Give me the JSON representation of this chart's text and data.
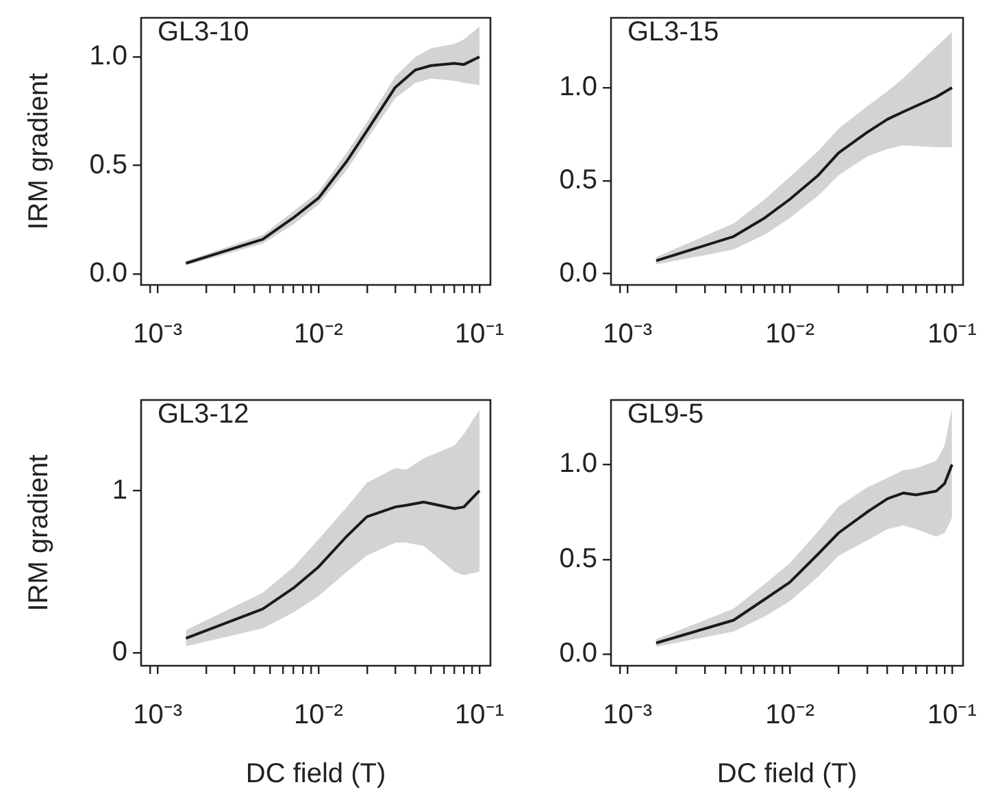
{
  "chart_data": [
    {
      "type": "line",
      "title": "GL3-10",
      "ylabel": "IRM gradient",
      "log": "x",
      "grid": false,
      "legend": false,
      "marker": "none",
      "line_style": "solid",
      "x": [
        0.0015,
        0.0045,
        0.007,
        0.01,
        0.015,
        0.02,
        0.03,
        0.04,
        0.05,
        0.07,
        0.08,
        0.1
      ],
      "series": [
        {
          "color": "#1a1a1a",
          "values": [
            0.05,
            0.16,
            0.26,
            0.35,
            0.52,
            0.66,
            0.86,
            0.94,
            0.96,
            0.97,
            0.965,
            1.0
          ],
          "lower": [
            0.04,
            0.14,
            0.23,
            0.32,
            0.48,
            0.62,
            0.81,
            0.88,
            0.9,
            0.89,
            0.88,
            0.87
          ],
          "upper": [
            0.06,
            0.18,
            0.29,
            0.38,
            0.56,
            0.7,
            0.91,
            1.0,
            1.04,
            1.06,
            1.08,
            1.14
          ]
        }
      ],
      "xlim": [
        0.00079,
        0.117
      ],
      "ylim": [
        -0.05,
        1.18
      ],
      "xticks": [
        {
          "value": 0.0009,
          "label": null
        },
        {
          "value": 0.001,
          "label": "10⁻³"
        },
        {
          "value": 0.002,
          "label": null
        },
        {
          "value": 0.003,
          "label": null
        },
        {
          "value": 0.004,
          "label": null
        },
        {
          "value": 0.005,
          "label": null
        },
        {
          "value": 0.006,
          "label": null
        },
        {
          "value": 0.007,
          "label": null
        },
        {
          "value": 0.008,
          "label": null
        },
        {
          "value": 0.009,
          "label": null
        },
        {
          "value": 0.01,
          "label": "10⁻²"
        },
        {
          "value": 0.02,
          "label": null
        },
        {
          "value": 0.03,
          "label": null
        },
        {
          "value": 0.04,
          "label": null
        },
        {
          "value": 0.05,
          "label": null
        },
        {
          "value": 0.06,
          "label": null
        },
        {
          "value": 0.07,
          "label": null
        },
        {
          "value": 0.08,
          "label": null
        },
        {
          "value": 0.09,
          "label": null
        },
        {
          "value": 0.1,
          "label": "10⁻¹"
        }
      ],
      "yticks": [
        {
          "value": 0,
          "label": "0.0"
        },
        {
          "value": 0.5,
          "label": "0.5"
        },
        {
          "value": 1,
          "label": "1.0"
        }
      ]
    },
    {
      "type": "line",
      "title": "GL3-15",
      "log": "x",
      "grid": false,
      "legend": false,
      "marker": "none",
      "line_style": "solid",
      "x": [
        0.0015,
        0.0045,
        0.007,
        0.01,
        0.015,
        0.02,
        0.03,
        0.04,
        0.05,
        0.08,
        0.1
      ],
      "series": [
        {
          "color": "#1a1a1a",
          "values": [
            0.07,
            0.2,
            0.3,
            0.4,
            0.53,
            0.65,
            0.76,
            0.83,
            0.87,
            0.95,
            1.0
          ],
          "lower": [
            0.05,
            0.13,
            0.21,
            0.3,
            0.42,
            0.53,
            0.63,
            0.67,
            0.69,
            0.68,
            0.68
          ],
          "upper": [
            0.09,
            0.27,
            0.4,
            0.52,
            0.66,
            0.78,
            0.9,
            0.98,
            1.05,
            1.22,
            1.3
          ]
        }
      ],
      "xlim": [
        0.00079,
        0.117
      ],
      "ylim": [
        -0.06,
        1.375
      ],
      "xticks": [
        {
          "value": 0.0009,
          "label": null
        },
        {
          "value": 0.001,
          "label": "10⁻³"
        },
        {
          "value": 0.002,
          "label": null
        },
        {
          "value": 0.003,
          "label": null
        },
        {
          "value": 0.004,
          "label": null
        },
        {
          "value": 0.005,
          "label": null
        },
        {
          "value": 0.006,
          "label": null
        },
        {
          "value": 0.007,
          "label": null
        },
        {
          "value": 0.008,
          "label": null
        },
        {
          "value": 0.009,
          "label": null
        },
        {
          "value": 0.01,
          "label": "10⁻²"
        },
        {
          "value": 0.02,
          "label": null
        },
        {
          "value": 0.03,
          "label": null
        },
        {
          "value": 0.04,
          "label": null
        },
        {
          "value": 0.05,
          "label": null
        },
        {
          "value": 0.06,
          "label": null
        },
        {
          "value": 0.07,
          "label": null
        },
        {
          "value": 0.08,
          "label": null
        },
        {
          "value": 0.09,
          "label": null
        },
        {
          "value": 0.1,
          "label": "10⁻¹"
        }
      ],
      "yticks": [
        {
          "value": 0,
          "label": "0.0"
        },
        {
          "value": 0.5,
          "label": "0.5"
        },
        {
          "value": 1,
          "label": "1.0"
        }
      ]
    },
    {
      "type": "line",
      "title": "GL3-12",
      "xlabel": "DC field (T)",
      "ylabel": "IRM gradient",
      "log": "x",
      "grid": false,
      "legend": false,
      "marker": "none",
      "line_style": "solid",
      "x": [
        0.0015,
        0.0045,
        0.007,
        0.01,
        0.015,
        0.02,
        0.03,
        0.035,
        0.045,
        0.07,
        0.08,
        0.1
      ],
      "series": [
        {
          "color": "#1a1a1a",
          "values": [
            0.09,
            0.27,
            0.4,
            0.53,
            0.72,
            0.84,
            0.9,
            0.91,
            0.93,
            0.89,
            0.9,
            1.0
          ],
          "lower": [
            0.04,
            0.15,
            0.25,
            0.35,
            0.5,
            0.6,
            0.68,
            0.68,
            0.66,
            0.5,
            0.48,
            0.5
          ],
          "upper": [
            0.14,
            0.37,
            0.53,
            0.7,
            0.9,
            1.05,
            1.14,
            1.13,
            1.2,
            1.28,
            1.35,
            1.5
          ]
        }
      ],
      "xlim": [
        0.00079,
        0.117
      ],
      "ylim": [
        -0.08,
        1.56
      ],
      "xticks": [
        {
          "value": 0.0009,
          "label": null
        },
        {
          "value": 0.001,
          "label": "10⁻³"
        },
        {
          "value": 0.002,
          "label": null
        },
        {
          "value": 0.003,
          "label": null
        },
        {
          "value": 0.004,
          "label": null
        },
        {
          "value": 0.005,
          "label": null
        },
        {
          "value": 0.006,
          "label": null
        },
        {
          "value": 0.007,
          "label": null
        },
        {
          "value": 0.008,
          "label": null
        },
        {
          "value": 0.009,
          "label": null
        },
        {
          "value": 0.01,
          "label": "10⁻²"
        },
        {
          "value": 0.02,
          "label": null
        },
        {
          "value": 0.03,
          "label": null
        },
        {
          "value": 0.04,
          "label": null
        },
        {
          "value": 0.05,
          "label": null
        },
        {
          "value": 0.06,
          "label": null
        },
        {
          "value": 0.07,
          "label": null
        },
        {
          "value": 0.08,
          "label": null
        },
        {
          "value": 0.09,
          "label": null
        },
        {
          "value": 0.1,
          "label": "10⁻¹"
        }
      ],
      "yticks": [
        {
          "value": 0,
          "label": "0"
        },
        {
          "value": 1,
          "label": "1"
        }
      ]
    },
    {
      "type": "line",
      "title": "GL9-5",
      "xlabel": "DC field (T)",
      "log": "x",
      "grid": false,
      "legend": false,
      "marker": "none",
      "line_style": "solid",
      "x": [
        0.0015,
        0.0045,
        0.007,
        0.01,
        0.015,
        0.02,
        0.03,
        0.04,
        0.05,
        0.06,
        0.08,
        0.09,
        0.1
      ],
      "series": [
        {
          "color": "#1a1a1a",
          "values": [
            0.06,
            0.18,
            0.29,
            0.38,
            0.53,
            0.64,
            0.75,
            0.82,
            0.85,
            0.84,
            0.86,
            0.9,
            1.0
          ],
          "lower": [
            0.04,
            0.12,
            0.2,
            0.28,
            0.41,
            0.52,
            0.6,
            0.66,
            0.68,
            0.66,
            0.62,
            0.64,
            0.72
          ],
          "upper": [
            0.08,
            0.24,
            0.37,
            0.48,
            0.65,
            0.78,
            0.88,
            0.93,
            0.97,
            0.98,
            1.02,
            1.1,
            1.3
          ]
        }
      ],
      "xlim": [
        0.00079,
        0.117
      ],
      "ylim": [
        -0.06,
        1.34
      ],
      "xticks": [
        {
          "value": 0.0009,
          "label": null
        },
        {
          "value": 0.001,
          "label": "10⁻³"
        },
        {
          "value": 0.002,
          "label": null
        },
        {
          "value": 0.003,
          "label": null
        },
        {
          "value": 0.004,
          "label": null
        },
        {
          "value": 0.005,
          "label": null
        },
        {
          "value": 0.006,
          "label": null
        },
        {
          "value": 0.007,
          "label": null
        },
        {
          "value": 0.008,
          "label": null
        },
        {
          "value": 0.009,
          "label": null
        },
        {
          "value": 0.01,
          "label": "10⁻²"
        },
        {
          "value": 0.02,
          "label": null
        },
        {
          "value": 0.03,
          "label": null
        },
        {
          "value": 0.04,
          "label": null
        },
        {
          "value": 0.05,
          "label": null
        },
        {
          "value": 0.06,
          "label": null
        },
        {
          "value": 0.07,
          "label": null
        },
        {
          "value": 0.08,
          "label": null
        },
        {
          "value": 0.09,
          "label": null
        },
        {
          "value": 0.1,
          "label": "10⁻¹"
        }
      ],
      "yticks": [
        {
          "value": 0,
          "label": "0.0"
        },
        {
          "value": 0.5,
          "label": "0.5"
        },
        {
          "value": 1,
          "label": "1.0"
        }
      ]
    }
  ]
}
